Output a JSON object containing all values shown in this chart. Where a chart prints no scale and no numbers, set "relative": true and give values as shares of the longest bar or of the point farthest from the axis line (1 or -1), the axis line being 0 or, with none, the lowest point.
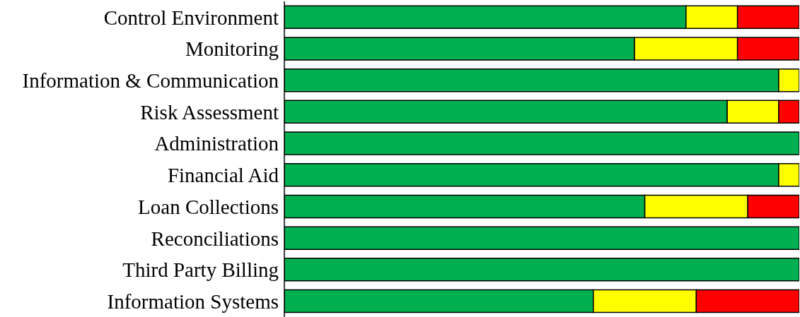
{
  "chart_data": {
    "type": "bar",
    "orientation": "horizontal",
    "stacked": true,
    "relative": true,
    "categories": [
      "Control Environment",
      "Monitoring",
      "Information & Communication",
      "Risk Assessment",
      "Administration",
      "Financial Aid",
      "Loan Collections",
      "Reconciliations",
      "Third Party Billing",
      "Information Systems"
    ],
    "series": [
      {
        "color": "#00b050",
        "values": [
          0.78,
          0.68,
          0.96,
          0.86,
          1,
          0.96,
          0.7,
          1,
          1,
          0.6
        ]
      },
      {
        "color": "#ffff00",
        "values": [
          0.1,
          0.2,
          0.04,
          0.1,
          null,
          0.04,
          0.2,
          null,
          null,
          0.2
        ]
      },
      {
        "color": "#ff0000",
        "values": [
          0.12,
          0.12,
          null,
          0.04,
          null,
          null,
          0.1,
          null,
          null,
          0.2
        ]
      }
    ]
  }
}
